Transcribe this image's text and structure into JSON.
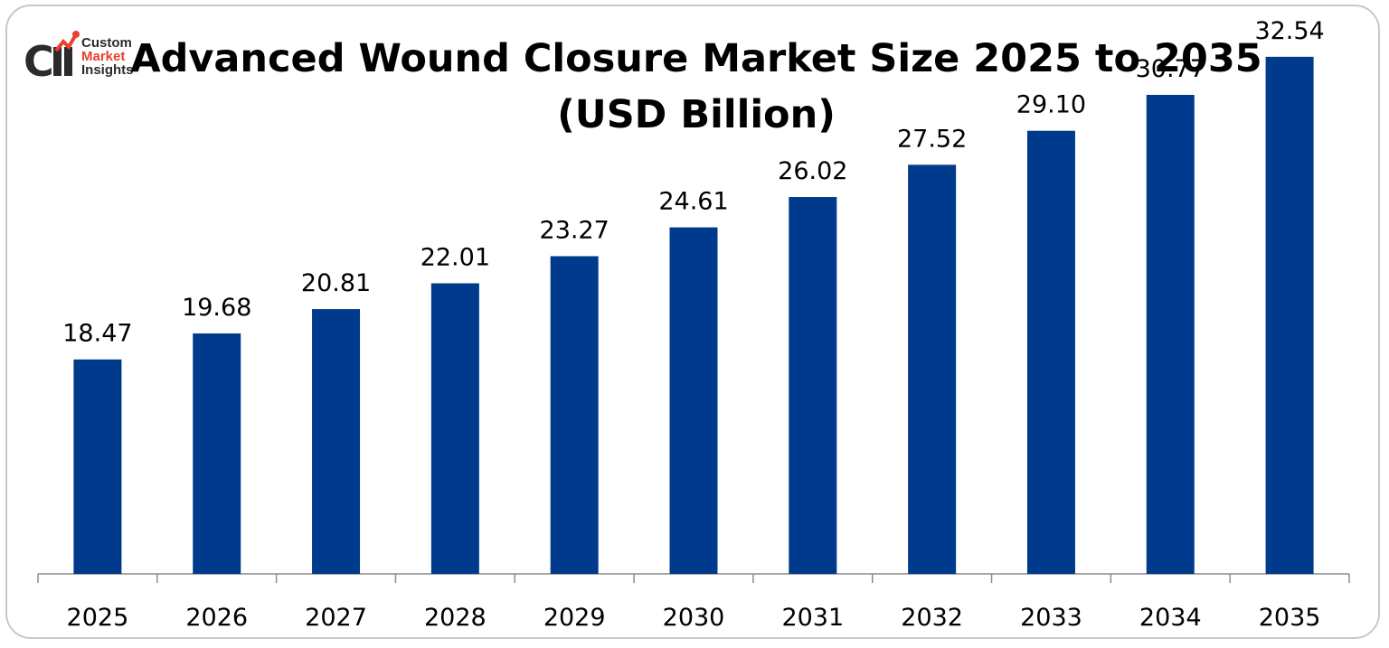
{
  "logo": {
    "line1": "Custom",
    "line2": "Market",
    "line3": "Insights"
  },
  "title": {
    "line1": "Advanced Wound Closure Market Size 2025 to 2035",
    "line2": "(USD Billion)"
  },
  "colors": {
    "bar": "#003a8c",
    "axis": "#8c8c8c",
    "text": "#000000",
    "logo_accent": "#e8412c"
  },
  "chart_data": {
    "type": "bar",
    "categories": [
      "2025",
      "2026",
      "2027",
      "2028",
      "2029",
      "2030",
      "2031",
      "2032",
      "2033",
      "2034",
      "2035"
    ],
    "values": [
      18.47,
      19.68,
      20.81,
      22.01,
      23.27,
      24.61,
      26.02,
      27.52,
      29.1,
      30.77,
      32.54
    ],
    "value_labels": [
      "18.47",
      "19.68",
      "20.81",
      "22.01",
      "23.27",
      "24.61",
      "26.02",
      "27.52",
      "29.10",
      "30.77",
      "32.54"
    ],
    "title": "Advanced Wound Closure Market Size 2025 to 2035 (USD Billion)",
    "xlabel": "",
    "ylabel": "",
    "ylim": [
      8.5,
      33.5
    ],
    "grid": false,
    "legend": "none"
  }
}
